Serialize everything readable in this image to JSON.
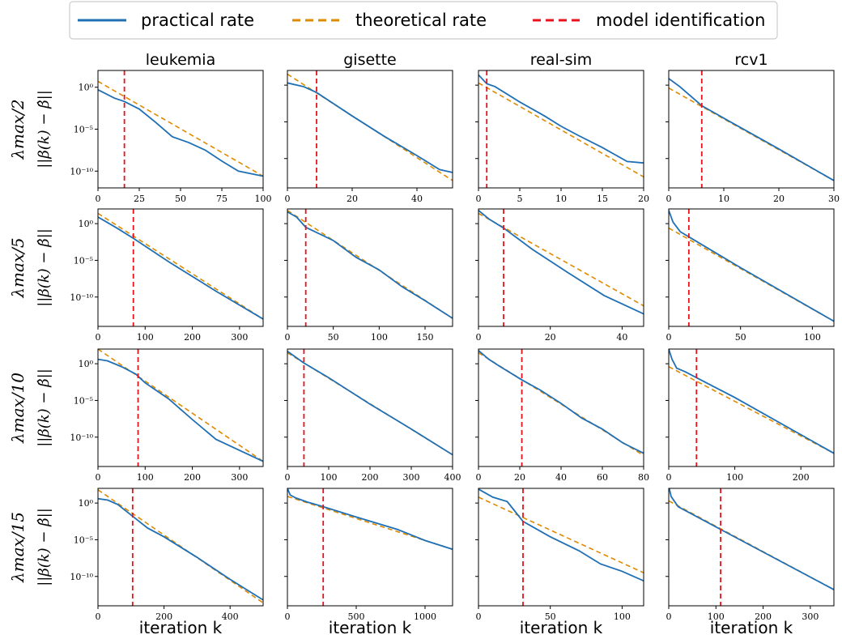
{
  "legend": {
    "entries": [
      {
        "label": "practical rate",
        "color": "#1f6fb5",
        "dash": "solid"
      },
      {
        "label": "theoretical rate",
        "color": "#e08a00",
        "dash": "dashed"
      },
      {
        "label": "model identification",
        "color": "#e8121a",
        "dash": "dashed"
      }
    ]
  },
  "columns": [
    "leukemia",
    "gisette",
    "real-sim",
    "rcv1"
  ],
  "rows": [
    {
      "lambda_label": "λmax/2"
    },
    {
      "lambda_label": "λmax/5"
    },
    {
      "lambda_label": "λmax/10"
    },
    {
      "lambda_label": "λmax/15"
    }
  ],
  "y_axis_label": "||β(k) − β̂||",
  "x_axis_label": "iteration k",
  "y_ticks": [
    "10⁰",
    "10⁻⁵",
    "10⁻¹⁰"
  ],
  "chart_data": {
    "type": "line",
    "y_scale": "log",
    "grid": false,
    "legend_position": "top-center",
    "colors": {
      "practical": "#1f6fb5",
      "theoretical": "#e08a00",
      "model_identification": "#e8121a"
    },
    "panels": [
      {
        "dataset": "leukemia",
        "lambda": "λmax/2",
        "xlim": [
          0,
          100
        ],
        "xticks": [
          0,
          25,
          50,
          75,
          100
        ],
        "ylim_exp": [
          -12,
          2
        ],
        "model_identification_k": 16,
        "theoretical": {
          "x": [
            0,
            100
          ],
          "y_exp": [
            0.7,
            -10.6
          ]
        },
        "practical": {
          "x": [
            0,
            10,
            16,
            25,
            35,
            45,
            55,
            65,
            75,
            85,
            100
          ],
          "y_exp": [
            -0.3,
            -1.3,
            -1.7,
            -2.6,
            -4.2,
            -5.9,
            -6.6,
            -7.5,
            -8.8,
            -10.0,
            -10.6
          ]
        }
      },
      {
        "dataset": "gisette",
        "lambda": "λmax/2",
        "xlim": [
          0,
          51
        ],
        "xticks": [
          0,
          20,
          40
        ],
        "ylim_exp": [
          -14,
          2
        ],
        "model_identification_k": 9,
        "theoretical": {
          "x": [
            0,
            51
          ],
          "y_exp": [
            1.5,
            -13.0
          ]
        },
        "practical": {
          "x": [
            0,
            5,
            9,
            20,
            30,
            40,
            47,
            51
          ],
          "y_exp": [
            0.3,
            -0.2,
            -1.0,
            -4.2,
            -7.0,
            -9.6,
            -11.5,
            -11.9
          ]
        }
      },
      {
        "dataset": "real-sim",
        "lambda": "λmax/2",
        "xlim": [
          0,
          20
        ],
        "xticks": [
          0,
          5,
          10,
          15,
          20
        ],
        "ylim_exp": [
          -14,
          2
        ],
        "model_identification_k": 1,
        "theoretical": {
          "x": [
            0,
            20
          ],
          "y_exp": [
            0.3,
            -12.5
          ]
        },
        "practical": {
          "x": [
            0,
            1,
            2,
            5,
            8,
            10,
            12,
            15,
            18,
            20
          ],
          "y_exp": [
            1.4,
            0.2,
            -0.2,
            -2.3,
            -4.2,
            -5.6,
            -6.8,
            -8.5,
            -10.4,
            -10.6
          ]
        }
      },
      {
        "dataset": "rcv1",
        "lambda": "λmax/2",
        "xlim": [
          0,
          30
        ],
        "xticks": [
          0,
          10,
          20,
          30
        ],
        "ylim_exp": [
          -14,
          2
        ],
        "model_identification_k": 6,
        "theoretical": {
          "x": [
            0,
            30
          ],
          "y_exp": [
            -0.4,
            -13.0
          ]
        },
        "practical": {
          "x": [
            0,
            2,
            4,
            6,
            10,
            20,
            30
          ],
          "y_exp": [
            0.9,
            -0.2,
            -1.5,
            -2.8,
            -4.5,
            -8.7,
            -13.0
          ]
        }
      },
      {
        "dataset": "leukemia",
        "lambda": "λmax/5",
        "xlim": [
          0,
          350
        ],
        "xticks": [
          0,
          100,
          200,
          300
        ],
        "ylim_exp": [
          -14,
          2
        ],
        "model_identification_k": 75,
        "theoretical": {
          "x": [
            0,
            350
          ],
          "y_exp": [
            1.4,
            -13.0
          ]
        },
        "practical": {
          "x": [
            0,
            40,
            75,
            150,
            250,
            350
          ],
          "y_exp": [
            0.9,
            -0.6,
            -2.0,
            -5.2,
            -9.2,
            -13.0
          ]
        }
      },
      {
        "dataset": "gisette",
        "lambda": "λmax/5",
        "xlim": [
          0,
          180
        ],
        "xticks": [
          0,
          50,
          100,
          150
        ],
        "ylim_exp": [
          -14,
          2
        ],
        "model_identification_k": 20,
        "theoretical": {
          "x": [
            0,
            180
          ],
          "y_exp": [
            1.8,
            -12.9
          ]
        },
        "practical": {
          "x": [
            0,
            10,
            20,
            50,
            75,
            100,
            125,
            150,
            180
          ],
          "y_exp": [
            1.6,
            0.9,
            -0.5,
            -2.3,
            -4.6,
            -6.3,
            -8.6,
            -10.5,
            -12.9
          ]
        }
      },
      {
        "dataset": "real-sim",
        "lambda": "λmax/5",
        "xlim": [
          0,
          46
        ],
        "xticks": [
          0,
          20,
          40
        ],
        "ylim_exp": [
          -14,
          2
        ],
        "model_identification_k": 7,
        "theoretical": {
          "x": [
            0,
            46
          ],
          "y_exp": [
            1.4,
            -11.2
          ]
        },
        "practical": {
          "x": [
            0,
            3,
            7,
            15,
            25,
            35,
            46
          ],
          "y_exp": [
            1.8,
            0.6,
            -0.6,
            -3.5,
            -6.7,
            -9.8,
            -12.3
          ]
        }
      },
      {
        "dataset": "rcv1",
        "lambda": "λmax/5",
        "xlim": [
          0,
          115
        ],
        "xticks": [
          0,
          50,
          100
        ],
        "ylim_exp": [
          -14,
          2
        ],
        "model_identification_k": 14,
        "theoretical": {
          "x": [
            0,
            115
          ],
          "y_exp": [
            -0.6,
            -13.3
          ]
        },
        "practical": {
          "x": [
            0,
            3,
            8,
            14,
            50,
            115
          ],
          "y_exp": [
            1.8,
            0.2,
            -1.1,
            -1.8,
            -6.0,
            -13.3
          ]
        }
      },
      {
        "dataset": "leukemia",
        "lambda": "λmax/10",
        "xlim": [
          0,
          350
        ],
        "xticks": [
          0,
          100,
          200,
          300
        ],
        "ylim_exp": [
          -14,
          2
        ],
        "model_identification_k": 85,
        "theoretical": {
          "x": [
            0,
            350
          ],
          "y_exp": [
            2.0,
            -13.3
          ]
        },
        "practical": {
          "x": [
            0,
            20,
            50,
            80,
            100,
            150,
            200,
            250,
            300,
            350
          ],
          "y_exp": [
            0.6,
            0.4,
            -0.4,
            -1.4,
            -2.6,
            -4.8,
            -7.6,
            -10.3,
            -11.8,
            -13.3
          ]
        }
      },
      {
        "dataset": "gisette",
        "lambda": "λmax/10",
        "xlim": [
          0,
          400
        ],
        "xticks": [
          0,
          100,
          200,
          300,
          400
        ],
        "ylim_exp": [
          -14,
          2
        ],
        "model_identification_k": 40,
        "theoretical": {
          "x": [
            0,
            400
          ],
          "y_exp": [
            1.5,
            -12.4
          ]
        },
        "practical": {
          "x": [
            0,
            20,
            40,
            100,
            200,
            300,
            400
          ],
          "y_exp": [
            1.7,
            0.9,
            0.1,
            -1.9,
            -5.5,
            -8.9,
            -12.4
          ]
        }
      },
      {
        "dataset": "real-sim",
        "lambda": "λmax/10",
        "xlim": [
          0,
          80
        ],
        "xticks": [
          0,
          20,
          40,
          60,
          80
        ],
        "ylim_exp": [
          -14,
          2
        ],
        "model_identification_k": 21,
        "theoretical": {
          "x": [
            0,
            80
          ],
          "y_exp": [
            1.5,
            -12.5
          ]
        },
        "practical": {
          "x": [
            0,
            5,
            10,
            21,
            30,
            40,
            50,
            60,
            70,
            80
          ],
          "y_exp": [
            1.8,
            0.6,
            -0.3,
            -2.2,
            -3.6,
            -5.4,
            -7.4,
            -8.9,
            -10.8,
            -12.2
          ]
        }
      },
      {
        "dataset": "rcv1",
        "lambda": "λmax/10",
        "xlim": [
          0,
          250
        ],
        "xticks": [
          0,
          100,
          200
        ],
        "ylim_exp": [
          -14,
          2
        ],
        "model_identification_k": 42,
        "theoretical": {
          "x": [
            0,
            250
          ],
          "y_exp": [
            -0.4,
            -12.2
          ]
        },
        "practical": {
          "x": [
            0,
            5,
            12,
            25,
            42,
            100,
            250
          ],
          "y_exp": [
            2.0,
            0.6,
            -0.6,
            -1.1,
            -1.9,
            -4.6,
            -12.2
          ]
        }
      },
      {
        "dataset": "leukemia",
        "lambda": "λmax/15",
        "xlim": [
          0,
          500
        ],
        "xticks": [
          0,
          200,
          400
        ],
        "ylim_exp": [
          -14,
          2
        ],
        "model_identification_k": 105,
        "theoretical": {
          "x": [
            0,
            500
          ],
          "y_exp": [
            1.8,
            -13.6
          ]
        },
        "practical": {
          "x": [
            0,
            30,
            60,
            105,
            150,
            200,
            300,
            400,
            500
          ],
          "y_exp": [
            0.6,
            0.4,
            -0.2,
            -1.8,
            -3.4,
            -4.6,
            -7.4,
            -10.4,
            -13.2
          ]
        }
      },
      {
        "dataset": "gisette",
        "lambda": "λmax/15",
        "xlim": [
          0,
          1200
        ],
        "xticks": [
          0,
          500,
          1000
        ],
        "ylim_exp": [
          -14,
          2
        ],
        "model_identification_k": 260,
        "theoretical": {
          "x": [
            0,
            1200
          ],
          "y_exp": [
            0.9,
            -6.3
          ]
        },
        "practical": {
          "x": [
            0,
            20,
            60,
            150,
            260,
            500,
            800,
            1000,
            1200
          ],
          "y_exp": [
            2.0,
            1.1,
            0.7,
            0.1,
            -0.5,
            -1.9,
            -3.6,
            -5.1,
            -6.3
          ]
        }
      },
      {
        "dataset": "real-sim",
        "lambda": "λmax/15",
        "xlim": [
          0,
          115
        ],
        "xticks": [
          0,
          50,
          100
        ],
        "ylim_exp": [
          -14,
          2
        ],
        "model_identification_k": 31,
        "theoretical": {
          "x": [
            0,
            115
          ],
          "y_exp": [
            0.8,
            -9.5
          ]
        },
        "practical": {
          "x": [
            0,
            10,
            20,
            31,
            50,
            70,
            85,
            100,
            115
          ],
          "y_exp": [
            1.9,
            0.8,
            0.2,
            -2.5,
            -4.6,
            -6.5,
            -8.3,
            -9.3,
            -10.6
          ]
        }
      },
      {
        "dataset": "rcv1",
        "lambda": "λmax/15",
        "xlim": [
          0,
          350
        ],
        "xticks": [
          0,
          100,
          200,
          300
        ],
        "ylim_exp": [
          -14,
          2
        ],
        "model_identification_k": 110,
        "theoretical": {
          "x": [
            0,
            350
          ],
          "y_exp": [
            0.3,
            -11.8
          ]
        },
        "practical": {
          "x": [
            0,
            5,
            20,
            110,
            350
          ],
          "y_exp": [
            2.3,
            0.9,
            -0.5,
            -3.6,
            -11.8
          ]
        }
      }
    ]
  }
}
